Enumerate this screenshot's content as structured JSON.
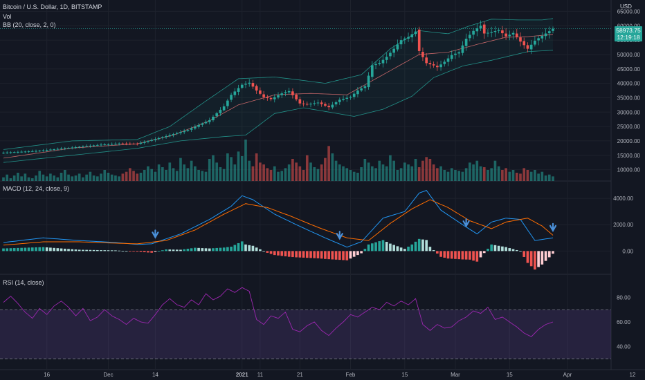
{
  "header": {
    "symbol": "Bitcoin / U.S. Dollar, 1D, BITSTAMP",
    "vol": "Vol",
    "bb": "BB (20, close, 2, 0)",
    "currency": "USD"
  },
  "price_tag": {
    "price": "58973.75",
    "countdown": "12:19:18"
  },
  "colors": {
    "background": "#131722",
    "up": "#26a69a",
    "down": "#ef5350",
    "bb_band": "#26a69a",
    "bb_basis": "#e57373",
    "macd": "#2196f3",
    "signal": "#ff6d00",
    "rsi": "#9c27b0",
    "arrow": "#4a90d9"
  },
  "chart_data": [
    {
      "type": "candlestick",
      "name": "price",
      "title": "Bitcoin / U.S. Dollar, 1D, BITSTAMP",
      "x_tick_labels": [
        "16",
        "Dec",
        "14",
        "2021",
        "11",
        "21",
        "Feb",
        "15",
        "Mar",
        "15",
        "Apr",
        "12"
      ],
      "y_tick_labels": [
        "65000.00",
        "60000.00",
        "55000.00",
        "50000.00",
        "45000.00",
        "40000.00",
        "35000.00",
        "30000.00",
        "25000.00",
        "20000.00",
        "15000.00",
        "10000.00"
      ],
      "ylim": [
        7500,
        67500
      ],
      "close_points": [
        [
          1,
          15900
        ],
        [
          10,
          16500
        ],
        [
          20,
          17700
        ],
        [
          28,
          18700
        ],
        [
          33,
          19100
        ],
        [
          38,
          19000
        ],
        [
          45,
          21300
        ],
        [
          52,
          23800
        ],
        [
          58,
          27200
        ],
        [
          62,
          32000
        ],
        [
          64,
          36000
        ],
        [
          67,
          39500
        ],
        [
          69,
          40200
        ],
        [
          71,
          37500
        ],
        [
          73,
          35200
        ],
        [
          75,
          34500
        ],
        [
          78,
          36500
        ],
        [
          80,
          37300
        ],
        [
          83,
          33000
        ],
        [
          85,
          32700
        ],
        [
          88,
          33300
        ],
        [
          91,
          31700
        ],
        [
          94,
          34300
        ],
        [
          97,
          35300
        ],
        [
          99,
          37500
        ],
        [
          101,
          39000
        ],
        [
          103,
          46300
        ],
        [
          105,
          47100
        ],
        [
          107,
          49200
        ],
        [
          109,
          52000
        ],
        [
          111,
          55000
        ],
        [
          113,
          56100
        ],
        [
          115,
          58000
        ],
        [
          116,
          51200
        ],
        [
          118,
          47000
        ],
        [
          120,
          46200
        ],
        [
          121,
          45600
        ],
        [
          123,
          47500
        ],
        [
          125,
          49800
        ],
        [
          127,
          50800
        ],
        [
          129,
          55500
        ],
        [
          131,
          58200
        ],
        [
          133,
          60000
        ],
        [
          134,
          57300
        ],
        [
          136,
          57800
        ],
        [
          138,
          58500
        ],
        [
          140,
          56300
        ],
        [
          142,
          57500
        ],
        [
          144,
          54500
        ],
        [
          146,
          52000
        ],
        [
          148,
          54800
        ],
        [
          150,
          56500
        ],
        [
          152,
          58100
        ],
        [
          153,
          58973
        ]
      ],
      "bollinger": {
        "upper": [
          [
            1,
            17000
          ],
          [
            20,
            20000
          ],
          [
            38,
            20500
          ],
          [
            47,
            25000
          ],
          [
            56,
            33000
          ],
          [
            66,
            41600
          ],
          [
            76,
            42200
          ],
          [
            82,
            41300
          ],
          [
            90,
            40000
          ],
          [
            100,
            43000
          ],
          [
            108,
            52000
          ],
          [
            116,
            58300
          ],
          [
            124,
            57200
          ],
          [
            130,
            60000
          ],
          [
            136,
            62300
          ],
          [
            144,
            62000
          ],
          [
            150,
            62000
          ],
          [
            153,
            62500
          ]
        ],
        "basis": [
          [
            1,
            14000
          ],
          [
            20,
            17500
          ],
          [
            38,
            19000
          ],
          [
            48,
            22000
          ],
          [
            58,
            27000
          ],
          [
            66,
            32500
          ],
          [
            76,
            36000
          ],
          [
            86,
            36500
          ],
          [
            96,
            36000
          ],
          [
            106,
            43000
          ],
          [
            116,
            50000
          ],
          [
            124,
            50800
          ],
          [
            132,
            53500
          ],
          [
            140,
            56000
          ],
          [
            146,
            56200
          ],
          [
            153,
            57000
          ]
        ],
        "lower": [
          [
            1,
            12500
          ],
          [
            20,
            15000
          ],
          [
            38,
            17400
          ],
          [
            50,
            20000
          ],
          [
            62,
            21500
          ],
          [
            68,
            22000
          ],
          [
            76,
            29500
          ],
          [
            84,
            31500
          ],
          [
            92,
            29800
          ],
          [
            98,
            28500
          ],
          [
            106,
            31000
          ],
          [
            114,
            35500
          ],
          [
            120,
            42000
          ],
          [
            128,
            46000
          ],
          [
            136,
            48000
          ],
          [
            146,
            51000
          ],
          [
            153,
            51500
          ]
        ]
      }
    },
    {
      "type": "bar",
      "name": "volume",
      "title": "Vol",
      "values": [
        4,
        7,
        3,
        6,
        9,
        5,
        8,
        4,
        3,
        6,
        11,
        7,
        5,
        8,
        6,
        4,
        9,
        12,
        7,
        5,
        6,
        8,
        4,
        7,
        10,
        6,
        5,
        8,
        12,
        9,
        7,
        6,
        5,
        8,
        10,
        14,
        11,
        8,
        9,
        12,
        16,
        13,
        10,
        18,
        15,
        12,
        20,
        14,
        11,
        25,
        18,
        14,
        22,
        16,
        12,
        11,
        10,
        24,
        28,
        20,
        15,
        13,
        30,
        26,
        18,
        32,
        27,
        45,
        22,
        16,
        30,
        20,
        18,
        14,
        12,
        16,
        10,
        11,
        14,
        18,
        24,
        20,
        16,
        12,
        28,
        20,
        15,
        13,
        18,
        25,
        38,
        30,
        22,
        18,
        16,
        14,
        12,
        10,
        9,
        15,
        24,
        20,
        16,
        14,
        22,
        18,
        16,
        28,
        22,
        12,
        14,
        20,
        18,
        16,
        24,
        15,
        22,
        26,
        24,
        18,
        14,
        16,
        12,
        10,
        14,
        12,
        11,
        10,
        14,
        20,
        18,
        22,
        16,
        15,
        12,
        14,
        22,
        16,
        12,
        14,
        10,
        12,
        9,
        8,
        14,
        12,
        10,
        12,
        8,
        10,
        6,
        7,
        5
      ],
      "y_tick_labels": []
    },
    {
      "type": "line",
      "name": "macd",
      "title": "MACD (12, 24, close, 9)",
      "y_tick_labels": [
        "4000.00",
        "2000.00",
        "0.00"
      ],
      "ylim": [
        -1500,
        5000
      ],
      "series": [
        {
          "name": "MACD",
          "points": [
            [
              1,
              650
            ],
            [
              12,
              1000
            ],
            [
              22,
              800
            ],
            [
              32,
              650
            ],
            [
              38,
              500
            ],
            [
              42,
              550
            ],
            [
              50,
              1300
            ],
            [
              58,
              2400
            ],
            [
              64,
              3400
            ],
            [
              67,
              4200
            ],
            [
              70,
              3900
            ],
            [
              76,
              2800
            ],
            [
              82,
              2000
            ],
            [
              90,
              1000
            ],
            [
              96,
              300
            ],
            [
              100,
              700
            ],
            [
              106,
              2500
            ],
            [
              112,
              3000
            ],
            [
              116,
              4400
            ],
            [
              118,
              4600
            ],
            [
              122,
              3100
            ],
            [
              128,
              2000
            ],
            [
              132,
              1300
            ],
            [
              136,
              2200
            ],
            [
              140,
              2500
            ],
            [
              144,
              2400
            ],
            [
              148,
              800
            ],
            [
              153,
              1000
            ]
          ]
        },
        {
          "name": "Signal",
          "points": [
            [
              1,
              450
            ],
            [
              12,
              700
            ],
            [
              22,
              700
            ],
            [
              32,
              600
            ],
            [
              38,
              550
            ],
            [
              46,
              800
            ],
            [
              54,
              1600
            ],
            [
              62,
              2800
            ],
            [
              68,
              3600
            ],
            [
              74,
              3300
            ],
            [
              80,
              2700
            ],
            [
              88,
              1800
            ],
            [
              96,
              1000
            ],
            [
              102,
              800
            ],
            [
              108,
              2100
            ],
            [
              114,
              3200
            ],
            [
              119,
              3900
            ],
            [
              124,
              3300
            ],
            [
              130,
              2300
            ],
            [
              136,
              1700
            ],
            [
              140,
              2200
            ],
            [
              146,
              2500
            ],
            [
              150,
              1900
            ],
            [
              153,
              1200
            ]
          ]
        }
      ],
      "arrow_x_labels": [
        "14",
        "Feb",
        "15",
        "Apr"
      ]
    },
    {
      "type": "line",
      "name": "rsi",
      "title": "RSI (14, close)",
      "y_tick_labels": [
        "80.00",
        "60.00",
        "40.00"
      ],
      "ylim": [
        24,
        96
      ],
      "bands": [
        30,
        70
      ],
      "series": [
        {
          "name": "RSI",
          "points": [
            [
              1,
              76
            ],
            [
              3,
              81
            ],
            [
              5,
              75
            ],
            [
              7,
              68
            ],
            [
              9,
              63
            ],
            [
              11,
              71
            ],
            [
              13,
              66
            ],
            [
              15,
              73
            ],
            [
              17,
              77
            ],
            [
              19,
              72
            ],
            [
              21,
              65
            ],
            [
              23,
              71
            ],
            [
              25,
              61
            ],
            [
              27,
              64
            ],
            [
              29,
              70
            ],
            [
              31,
              65
            ],
            [
              33,
              62
            ],
            [
              35,
              58
            ],
            [
              37,
              63
            ],
            [
              39,
              60
            ],
            [
              41,
              59
            ],
            [
              43,
              66
            ],
            [
              45,
              74
            ],
            [
              47,
              79
            ],
            [
              49,
              74
            ],
            [
              51,
              72
            ],
            [
              53,
              78
            ],
            [
              55,
              74
            ],
            [
              57,
              83
            ],
            [
              59,
              78
            ],
            [
              61,
              81
            ],
            [
              63,
              87
            ],
            [
              65,
              84
            ],
            [
              67,
              88
            ],
            [
              69,
              85
            ],
            [
              71,
              62
            ],
            [
              73,
              58
            ],
            [
              75,
              65
            ],
            [
              77,
              63
            ],
            [
              79,
              68
            ],
            [
              81,
              54
            ],
            [
              83,
              52
            ],
            [
              85,
              57
            ],
            [
              87,
              60
            ],
            [
              89,
              53
            ],
            [
              91,
              49
            ],
            [
              93,
              55
            ],
            [
              95,
              60
            ],
            [
              97,
              66
            ],
            [
              99,
              64
            ],
            [
              101,
              68
            ],
            [
              103,
              72
            ],
            [
              105,
              70
            ],
            [
              107,
              76
            ],
            [
              109,
              73
            ],
            [
              111,
              77
            ],
            [
              113,
              74
            ],
            [
              115,
              79
            ],
            [
              117,
              58
            ],
            [
              119,
              53
            ],
            [
              121,
              58
            ],
            [
              123,
              55
            ],
            [
              125,
              56
            ],
            [
              127,
              61
            ],
            [
              129,
              64
            ],
            [
              131,
              69
            ],
            [
              133,
              67
            ],
            [
              135,
              72
            ],
            [
              137,
              62
            ],
            [
              139,
              64
            ],
            [
              141,
              60
            ],
            [
              143,
              56
            ],
            [
              145,
              51
            ],
            [
              147,
              48
            ],
            [
              149,
              54
            ],
            [
              151,
              58
            ],
            [
              153,
              60
            ]
          ]
        }
      ]
    }
  ]
}
